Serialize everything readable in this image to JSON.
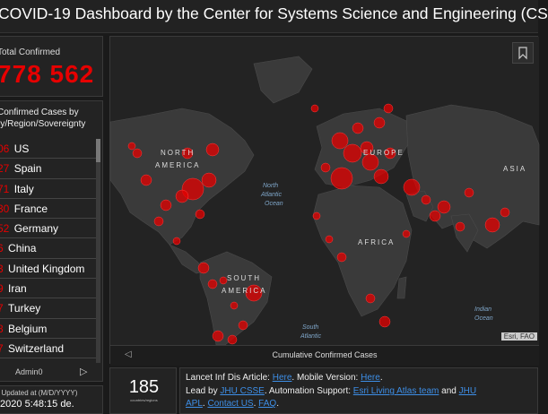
{
  "header": {
    "title": "COVID-19 Dashboard by the Center for Systems Science and Engineering (CS"
  },
  "total": {
    "label": "Total Confirmed",
    "value": "778 562"
  },
  "cases_panel": {
    "heading_line1": "Confirmed Cases by",
    "heading_line2": "ry/Region/Sovereignty",
    "rows": [
      {
        "num": "06",
        "country": "US"
      },
      {
        "num": "27",
        "country": "Spain"
      },
      {
        "num": "71",
        "country": "Italy"
      },
      {
        "num": "30",
        "country": "France"
      },
      {
        "num": "52",
        "country": "Germany"
      },
      {
        "num": "6",
        "country": "China"
      },
      {
        "num": "3",
        "country": "United Kingdom"
      },
      {
        "num": "9",
        "country": "Iran"
      },
      {
        "num": "7",
        "country": "Turkey"
      },
      {
        "num": "8",
        "country": "Belgium"
      },
      {
        "num": "7",
        "country": "Switzerland"
      }
    ],
    "tab_label": "Admin0",
    "next_icon": "chevron-right-icon"
  },
  "updated": {
    "label": "t Updated at (M/D/YYYY)",
    "value": "/2020 5:48:15 de."
  },
  "map": {
    "labels": {
      "north_america_1": "NORTH",
      "north_america_2": "AMERICA",
      "europe": "EUROPE",
      "asia": "ASIA",
      "africa": "AFRICA",
      "south_america_1": "SOUTH",
      "south_america_2": "AMERICA",
      "north_atlantic_1": "North",
      "north_atlantic_2": "Atlantic",
      "north_atlantic_3": "Ocean",
      "south_atlantic_1": "South",
      "south_atlantic_2": "Atlantic",
      "indian_1": "Indian",
      "indian_2": "Ocean"
    },
    "footer_title": "Cumulative Confirmed Cases",
    "attribution": "Esri, FAO",
    "bubble_color": "#e60000",
    "land_color": "#3a3a3a"
  },
  "countries": {
    "value": "185",
    "label": "countries/regions"
  },
  "info": {
    "line1_pre": "Lancet Inf Dis Article: ",
    "line1_link1": "Here",
    "line1_mid": ". Mobile Version: ",
    "line1_link2": "Here",
    "line1_end": ".",
    "line2_pre": "Lead by ",
    "line2_link1": "JHU CSSE",
    "line2_mid": ". Automation Support: ",
    "line2_link2": "Esri Living Atlas team",
    "line2_and": " and ",
    "line2_link3": "JHU",
    "line3_link1": "APL",
    "line3_mid": ". ",
    "line3_link2": "Contact US",
    "line3_sep": ". ",
    "line3_link3": "FAQ",
    "line3_end": "."
  }
}
